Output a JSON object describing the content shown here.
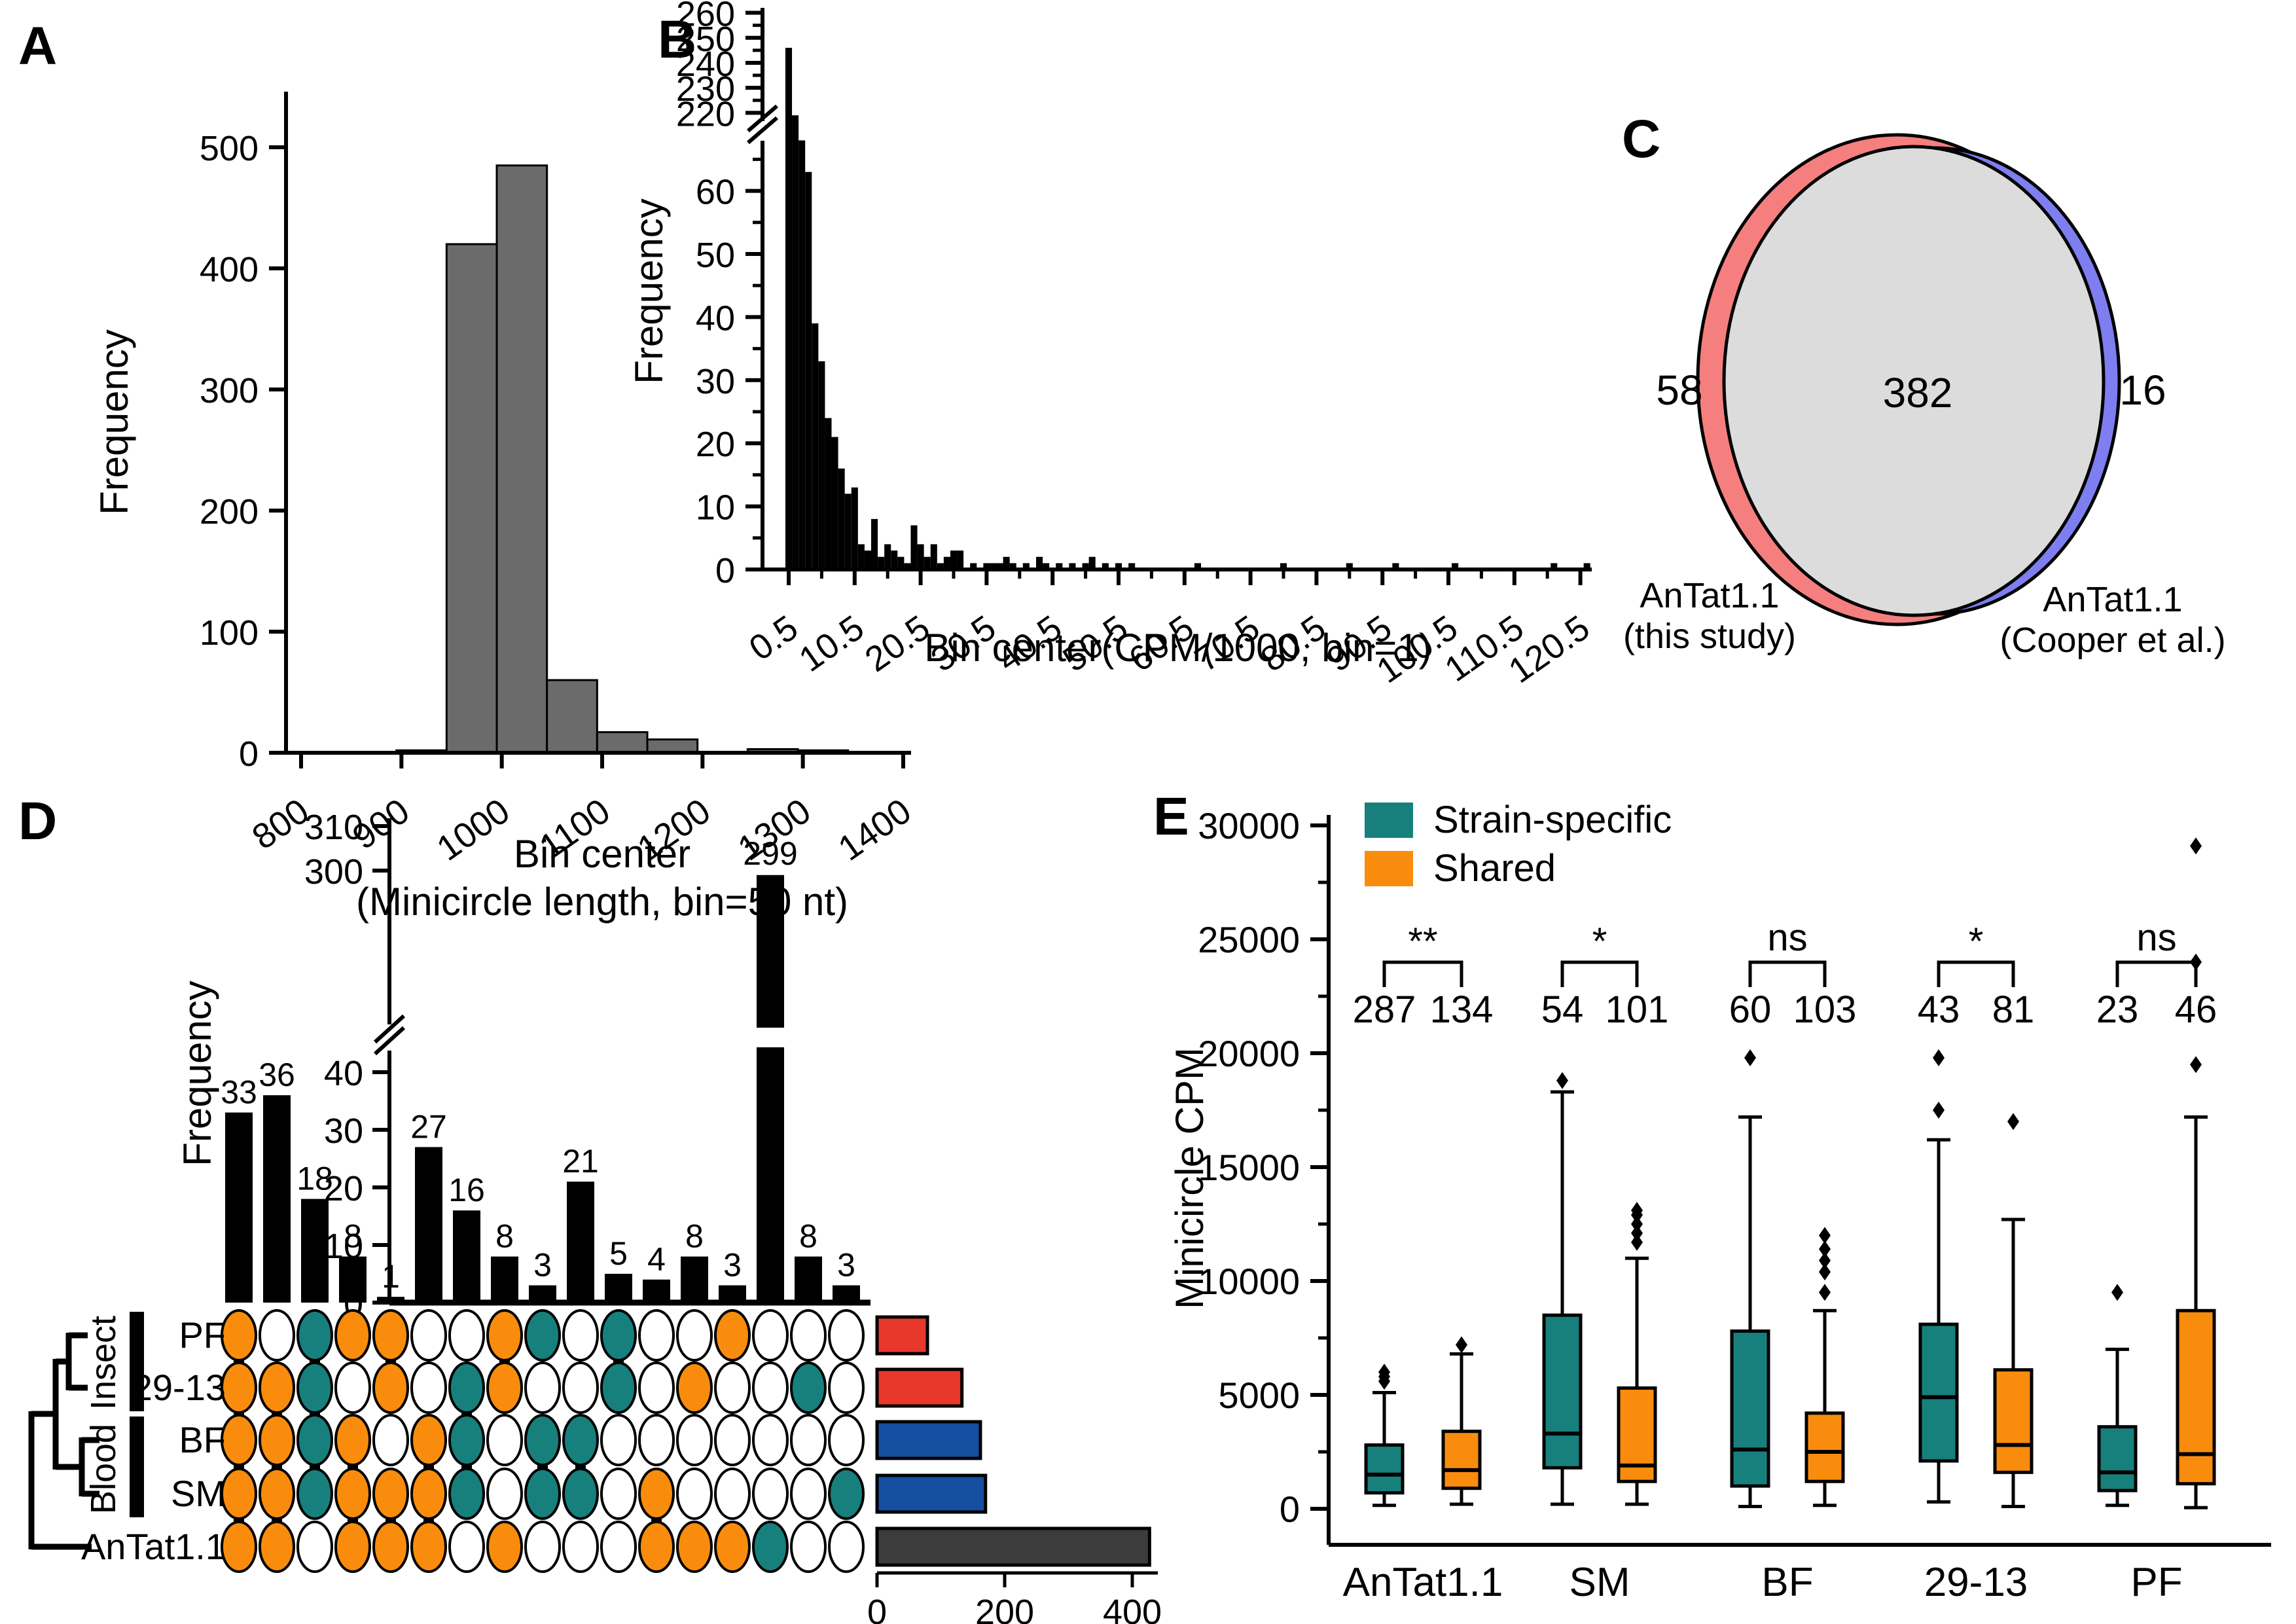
{
  "figure": {
    "panels": {
      "a": "A",
      "b": "B",
      "c": "C",
      "d": "D",
      "e": "E"
    }
  },
  "chart_data": [
    {
      "id": "A",
      "type": "bar",
      "ylabel": "Frequency",
      "xlabel": "Bin center",
      "xlabel2": "(Minicircle length, bin=50 nt)",
      "bar_color": "#6B6B6B",
      "xlim": [
        800,
        1400
      ],
      "ylim": [
        0,
        550
      ],
      "xticks": [
        "800",
        "900",
        "1000",
        "1100",
        "1200",
        "1300",
        "1400"
      ],
      "yticks": [
        0,
        100,
        200,
        300,
        400,
        500
      ],
      "bin_width": 50,
      "bars": [
        [
          920,
          2
        ],
        [
          970,
          420
        ],
        [
          1020,
          485
        ],
        [
          1070,
          60
        ],
        [
          1120,
          17
        ],
        [
          1170,
          11
        ],
        [
          1270,
          3
        ],
        [
          1320,
          2
        ]
      ]
    },
    {
      "id": "B",
      "type": "bar",
      "ylabel": "Frequency",
      "xlabel": "Bin center(CPM/1000, bin=1)",
      "bar_color": "#000000",
      "axis_break": {
        "lower_max": 69,
        "upper_min": 218,
        "upper_max": 262
      },
      "yticks_lower": [
        0,
        10,
        20,
        30,
        40,
        50,
        60
      ],
      "yticks_upper": [
        220,
        230,
        240,
        250,
        260
      ],
      "xticks": [
        "0.5",
        "10.5",
        "20.5",
        "30.5",
        "40.5",
        "50.5",
        "60.5",
        "70.5",
        "80.5",
        "90.5",
        "100.5",
        "110.5",
        "120.5"
      ],
      "bin_width": 1,
      "bars": [
        [
          0.5,
          246
        ],
        [
          1.5,
          219
        ],
        [
          2.5,
          68
        ],
        [
          3.5,
          63
        ],
        [
          4.5,
          39
        ],
        [
          5.5,
          33
        ],
        [
          6.5,
          24
        ],
        [
          7.5,
          21
        ],
        [
          8.5,
          16
        ],
        [
          9.5,
          12
        ],
        [
          10.5,
          13
        ],
        [
          11.5,
          4
        ],
        [
          12.5,
          3
        ],
        [
          13.5,
          8
        ],
        [
          14.5,
          2
        ],
        [
          15.5,
          4
        ],
        [
          16.5,
          3
        ],
        [
          17.5,
          2
        ],
        [
          18.5,
          1
        ],
        [
          19.5,
          7
        ],
        [
          20.5,
          4
        ],
        [
          21.5,
          2
        ],
        [
          22.5,
          4
        ],
        [
          23.5,
          1
        ],
        [
          24.5,
          2
        ],
        [
          25.5,
          3
        ],
        [
          26.5,
          3
        ],
        [
          28.5,
          1
        ],
        [
          30.5,
          1
        ],
        [
          31.5,
          1
        ],
        [
          32.5,
          1
        ],
        [
          33.5,
          2
        ],
        [
          34.5,
          1
        ],
        [
          36.5,
          1
        ],
        [
          38.5,
          2
        ],
        [
          39.5,
          1
        ],
        [
          41.5,
          1
        ],
        [
          43.5,
          1
        ],
        [
          45.5,
          1
        ],
        [
          46.5,
          2
        ],
        [
          48.5,
          1
        ],
        [
          50.5,
          1
        ],
        [
          52.5,
          1
        ],
        [
          62.5,
          1
        ],
        [
          75.5,
          1
        ],
        [
          85.5,
          1
        ],
        [
          92.5,
          1
        ],
        [
          101.5,
          1
        ],
        [
          116.5,
          1
        ],
        [
          121.5,
          1
        ]
      ]
    },
    {
      "id": "C",
      "type": "venn",
      "left_only": 58,
      "intersection": 382,
      "right_only": 16,
      "left_label": [
        "AnTat1.1",
        "(this study)"
      ],
      "right_label": [
        "AnTat1.1",
        "(Cooper et al.)"
      ],
      "colors": {
        "left": "#F57F7F",
        "right": "#7E7EF0",
        "intersection": "#DCDCDC"
      }
    },
    {
      "id": "D",
      "type": "upset",
      "ylabel": "Frequency",
      "yticks_lower": [
        0,
        10,
        20,
        30,
        40
      ],
      "yticks_upper": [
        300,
        310
      ],
      "intersection_sizes": [
        33,
        36,
        18,
        8,
        1,
        27,
        16,
        8,
        3,
        21,
        5,
        4,
        8,
        3,
        299,
        8,
        3
      ],
      "rows": [
        "PF",
        "29-13",
        "BF",
        "SM",
        "AnTat1.1"
      ],
      "matrix": [
        [
          "O",
          "O",
          "O",
          "O",
          "O"
        ],
        [
          ".",
          "O",
          "O",
          "O",
          "O"
        ],
        [
          "T",
          "T",
          "T",
          "T",
          "."
        ],
        [
          "O",
          ".",
          "O",
          "O",
          "O"
        ],
        [
          "O",
          "O",
          ".",
          "O",
          "O"
        ],
        [
          ".",
          ".",
          "O",
          "O",
          "O"
        ],
        [
          ".",
          "T",
          "T",
          "T",
          "."
        ],
        [
          "O",
          "O",
          ".",
          ".",
          "O"
        ],
        [
          "T",
          ".",
          "T",
          "T",
          "."
        ],
        [
          ".",
          ".",
          "T",
          "T",
          "."
        ],
        [
          "T",
          "T",
          ".",
          ".",
          "."
        ],
        [
          ".",
          ".",
          ".",
          "O",
          "O"
        ],
        [
          ".",
          "O",
          ".",
          ".",
          "O"
        ],
        [
          "O",
          ".",
          ".",
          ".",
          "O"
        ],
        [
          ".",
          ".",
          ".",
          ".",
          "T"
        ],
        [
          ".",
          "T",
          ".",
          ".",
          "."
        ],
        [
          ".",
          ".",
          ".",
          "T",
          "."
        ]
      ],
      "dot_colors": {
        "O": "#F98C0C",
        "T": "#17807D",
        "empty": "#FFFFFF"
      },
      "sets": [
        {
          "name": "PF",
          "size": 79,
          "color": "#E8382C"
        },
        {
          "name": "29-13",
          "size": 133,
          "color": "#E8382C"
        },
        {
          "name": "BF",
          "size": 162,
          "color": "#164FA2"
        },
        {
          "name": "SM",
          "size": 170,
          "color": "#164FA2"
        },
        {
          "name": "AnTat1.1",
          "size": 427,
          "color": "#3C3C3C"
        }
      ],
      "set_axis_ticks": [
        0,
        200,
        400
      ],
      "clades": [
        {
          "label": "Insect",
          "rows": [
            "PF",
            "29-13"
          ]
        },
        {
          "label": "Blood",
          "rows": [
            "BF",
            "SM"
          ]
        }
      ]
    },
    {
      "id": "E",
      "type": "box",
      "ylabel": "Minicircle CPM",
      "yticks": [
        0,
        5000,
        10000,
        15000,
        20000,
        25000,
        30000
      ],
      "ylim": [
        0,
        31500
      ],
      "legend": [
        {
          "label": "Strain-specific",
          "color": "#17807D"
        },
        {
          "label": "Shared",
          "color": "#F98C0C"
        }
      ],
      "groups": [
        "AnTat1.1",
        "SM",
        "BF",
        "29-13",
        "PF"
      ],
      "significance": [
        "**",
        "*",
        "ns",
        "*",
        "ns"
      ],
      "n_values": [
        [
          287,
          134
        ],
        [
          54,
          101
        ],
        [
          60,
          103
        ],
        [
          43,
          81
        ],
        [
          23,
          46
        ]
      ],
      "series": [
        {
          "name": "Strain-specific",
          "color": "#17807D",
          "boxes": [
            {
              "whislo": 150,
              "q1": 700,
              "med": 1500,
              "q3": 2800,
              "whishi": 5100,
              "outliers": [
                5600,
                5800,
                6000
              ]
            },
            {
              "whislo": 200,
              "q1": 1800,
              "med": 3300,
              "q3": 8500,
              "whishi": 18300,
              "outliers": [
                18800
              ]
            },
            {
              "whislo": 100,
              "q1": 1000,
              "med": 2600,
              "q3": 7800,
              "whishi": 17200,
              "outliers": [
                19800
              ]
            },
            {
              "whislo": 300,
              "q1": 2100,
              "med": 4900,
              "q3": 8100,
              "whishi": 16200,
              "outliers": [
                17500,
                19800
              ]
            },
            {
              "whislo": 150,
              "q1": 800,
              "med": 1600,
              "q3": 3600,
              "whishi": 7000,
              "outliers": [
                9500
              ]
            }
          ]
        },
        {
          "name": "Shared",
          "color": "#F98C0C",
          "boxes": [
            {
              "whislo": 200,
              "q1": 900,
              "med": 1700,
              "q3": 3400,
              "whishi": 6800,
              "outliers": [
                7200
              ]
            },
            {
              "whislo": 200,
              "q1": 1200,
              "med": 1900,
              "q3": 5300,
              "whishi": 11000,
              "outliers": [
                11700,
                12100,
                12500,
                12900,
                13100
              ]
            },
            {
              "whislo": 150,
              "q1": 1200,
              "med": 2500,
              "q3": 4200,
              "whishi": 8700,
              "outliers": [
                9500,
                10400,
                10900,
                11400,
                12000
              ]
            },
            {
              "whislo": 100,
              "q1": 1600,
              "med": 2800,
              "q3": 6100,
              "whishi": 12700,
              "outliers": [
                17000
              ]
            },
            {
              "whislo": 50,
              "q1": 1100,
              "med": 2400,
              "q3": 8700,
              "whishi": 17200,
              "outliers": [
                19500,
                24000,
                29100
              ]
            }
          ]
        }
      ]
    }
  ]
}
